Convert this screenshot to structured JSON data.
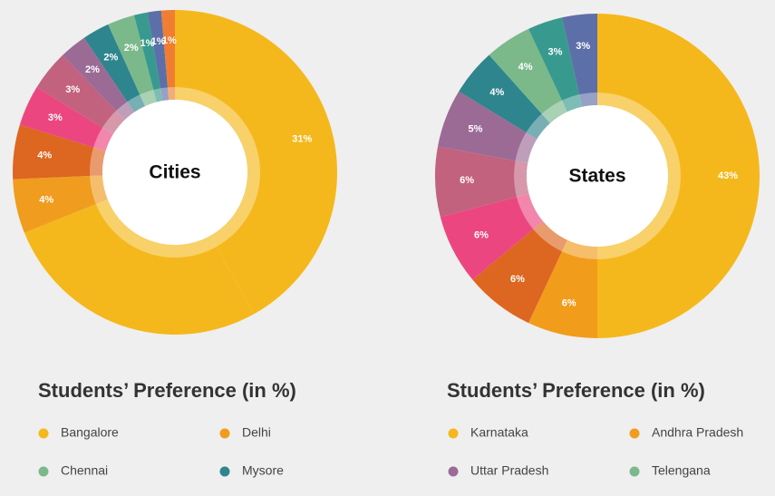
{
  "chart_data": [
    {
      "type": "donut",
      "title": "Cities",
      "subtitle": "Students’ Preference (in %)",
      "values": [
        31,
        20,
        4,
        4,
        3,
        3,
        2,
        2,
        2,
        1,
        1,
        1
      ],
      "value_labels": [
        "31%",
        null,
        "4%",
        "4%",
        "3%",
        "3%",
        "2%",
        "2%",
        "2%",
        "1%",
        "1%",
        "1%"
      ],
      "colors": [
        "#f5b81c",
        "#f5b81c",
        "#f09c1e",
        "#dd6620",
        "#ec4680",
        "#c2627e",
        "#9b6b96",
        "#2e858d",
        "#7bb98b",
        "#389a8f",
        "#5d6fa8",
        "#ef7e32"
      ],
      "legend": [
        {
          "name": "Bangalore",
          "color": "#f5b81c"
        },
        {
          "name": "Chennai",
          "color": "#7bb98b"
        },
        {
          "name": "Delhi",
          "color": "#f09c1e"
        },
        {
          "name": "Mysore",
          "color": "#2e858d"
        }
      ]
    },
    {
      "type": "donut",
      "title": "States",
      "subtitle": "Students’ Preference (in %)",
      "values": [
        43,
        6,
        6,
        6,
        6,
        5,
        4,
        4,
        3,
        3
      ],
      "value_labels": [
        "43%",
        "6%",
        "6%",
        "6%",
        "6%",
        "5%",
        "4%",
        "4%",
        "3%",
        "3%"
      ],
      "colors": [
        "#f5b81c",
        "#f29c1c",
        "#dd6620",
        "#ec4680",
        "#c2627e",
        "#9b6b96",
        "#2e858d",
        "#7bb98b",
        "#389a8f",
        "#5d6fa8"
      ],
      "legend": [
        {
          "name": "Karnataka",
          "color": "#f5b81c"
        },
        {
          "name": "Uttar Pradesh",
          "color": "#9b6b96"
        },
        {
          "name": "Andhra Pradesh",
          "color": "#f09c1e"
        },
        {
          "name": "Telengana",
          "color": "#7bb98b"
        }
      ]
    }
  ]
}
